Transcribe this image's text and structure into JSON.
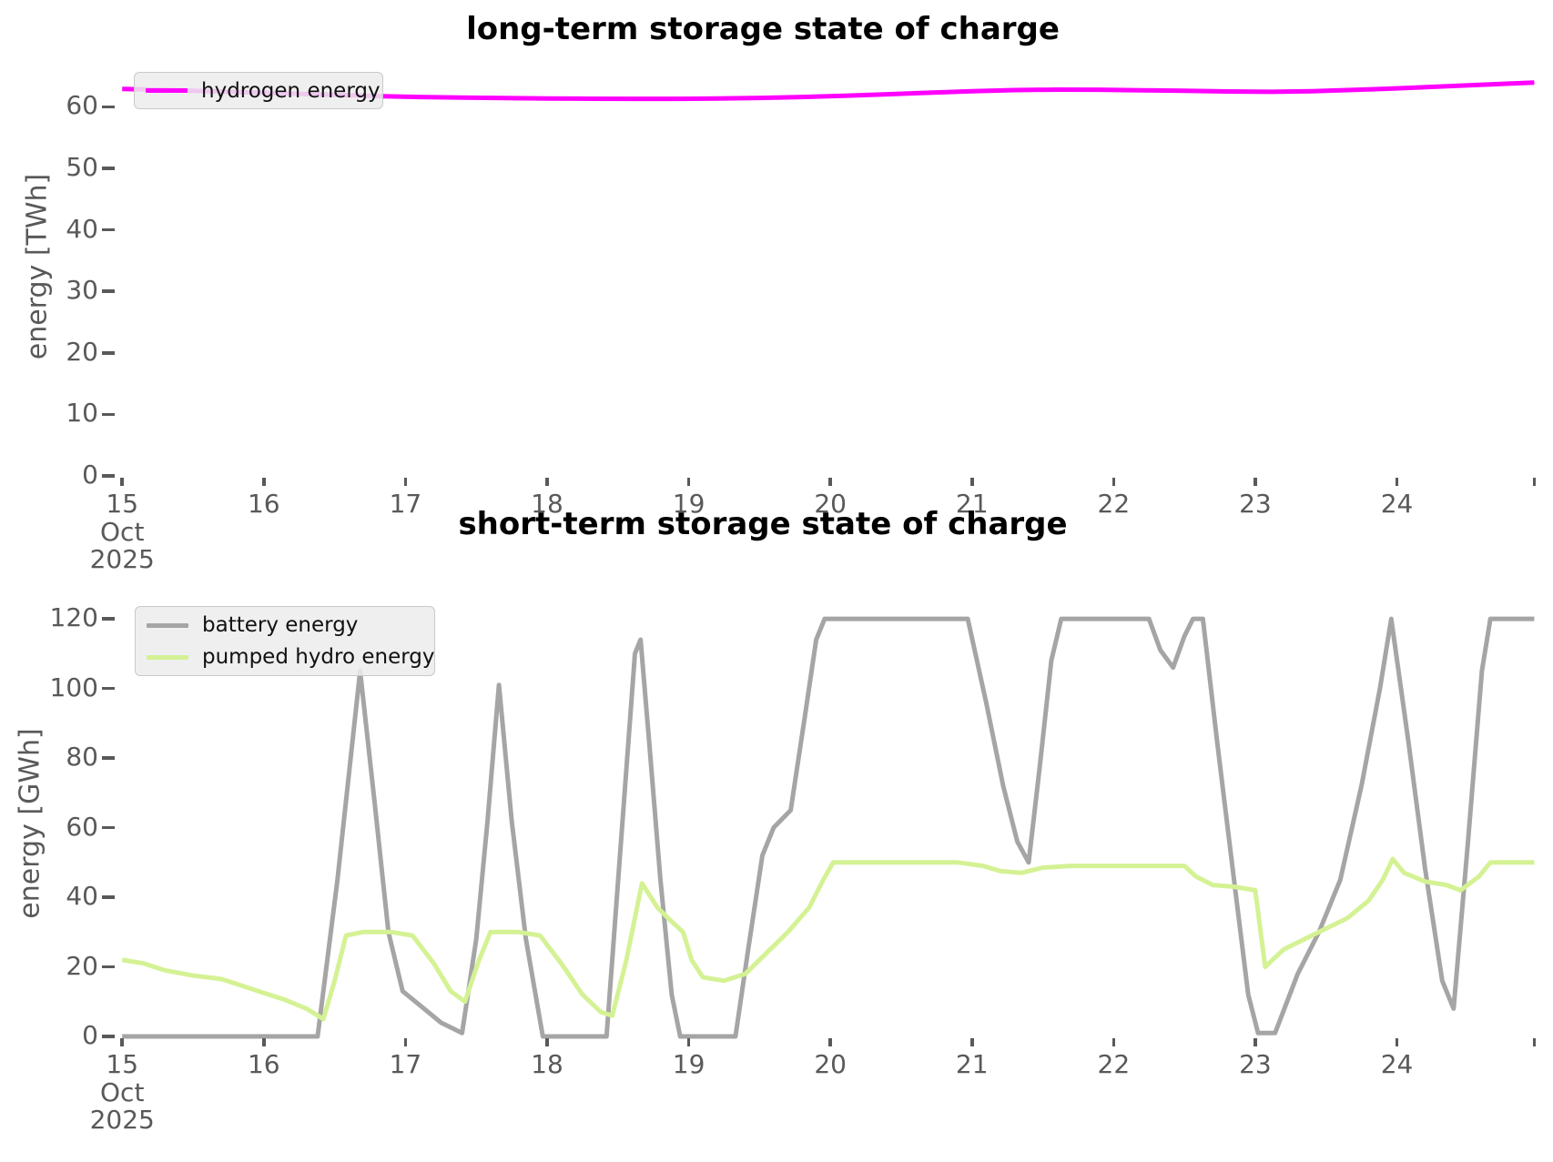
{
  "chart_data": [
    {
      "type": "line",
      "title": "long-term storage state of charge",
      "ylabel": "energy [TWh]",
      "xlabel": "",
      "x_unit": "day of October 2025",
      "x_start_date": "15 Oct 2025",
      "xlim": [
        14.96,
        24.98
      ],
      "ylim": [
        0,
        68.05
      ],
      "yticks": [
        0,
        10,
        20,
        30,
        40,
        50,
        60
      ],
      "xticks": [
        {
          "v": 15,
          "label": "15",
          "sub": [
            "Oct",
            "2025"
          ]
        },
        {
          "v": 16,
          "label": "16"
        },
        {
          "v": 17,
          "label": "17"
        },
        {
          "v": 18,
          "label": "18"
        },
        {
          "v": 19,
          "label": "19"
        },
        {
          "v": 20,
          "label": "20"
        },
        {
          "v": 21,
          "label": "21"
        },
        {
          "v": 22,
          "label": "22"
        },
        {
          "v": 23,
          "label": "23"
        },
        {
          "v": 24,
          "label": "24"
        },
        {
          "v": 24.97,
          "label": ""
        }
      ],
      "grid": false,
      "legend_position": "upper left",
      "series": [
        {
          "name": "hydrogen energy",
          "color": "#ff00ff",
          "points": [
            [
              15.0,
              62.9
            ],
            [
              15.3,
              62.75
            ],
            [
              15.6,
              62.55
            ],
            [
              15.9,
              62.35
            ],
            [
              16.2,
              62.15
            ],
            [
              16.5,
              61.95
            ],
            [
              16.8,
              61.75
            ],
            [
              17.1,
              61.6
            ],
            [
              17.4,
              61.5
            ],
            [
              17.7,
              61.42
            ],
            [
              18.0,
              61.36
            ],
            [
              18.3,
              61.32
            ],
            [
              18.6,
              61.3
            ],
            [
              18.9,
              61.3
            ],
            [
              19.2,
              61.35
            ],
            [
              19.5,
              61.45
            ],
            [
              19.8,
              61.6
            ],
            [
              20.1,
              61.8
            ],
            [
              20.4,
              62.05
            ],
            [
              20.7,
              62.3
            ],
            [
              21.0,
              62.55
            ],
            [
              21.3,
              62.72
            ],
            [
              21.6,
              62.8
            ],
            [
              21.9,
              62.78
            ],
            [
              22.2,
              62.7
            ],
            [
              22.5,
              62.6
            ],
            [
              22.8,
              62.5
            ],
            [
              23.1,
              62.45
            ],
            [
              23.4,
              62.55
            ],
            [
              23.7,
              62.75
            ],
            [
              24.0,
              63.0
            ],
            [
              24.3,
              63.3
            ],
            [
              24.6,
              63.6
            ],
            [
              24.97,
              63.95
            ]
          ]
        }
      ]
    },
    {
      "type": "line",
      "title": "short-term storage state of charge",
      "ylabel": "energy [GWh]",
      "xlabel": "",
      "x_unit": "day of October 2025",
      "x_start_date": "15 Oct 2025",
      "xlim": [
        14.96,
        24.98
      ],
      "ylim": [
        0,
        124.2
      ],
      "yticks": [
        0,
        20,
        40,
        60,
        80,
        100,
        120
      ],
      "xticks": [
        {
          "v": 15,
          "label": "15",
          "sub": [
            "Oct",
            "2025"
          ]
        },
        {
          "v": 16,
          "label": "16"
        },
        {
          "v": 17,
          "label": "17"
        },
        {
          "v": 18,
          "label": "18"
        },
        {
          "v": 19,
          "label": "19"
        },
        {
          "v": 20,
          "label": "20"
        },
        {
          "v": 21,
          "label": "21"
        },
        {
          "v": 22,
          "label": "22"
        },
        {
          "v": 23,
          "label": "23"
        },
        {
          "v": 24,
          "label": "24"
        },
        {
          "v": 24.97,
          "label": ""
        }
      ],
      "grid": false,
      "legend_position": "upper left",
      "series": [
        {
          "name": "battery energy",
          "color": "#a5a5a5",
          "points": [
            [
              15.0,
              0
            ],
            [
              15.5,
              0
            ],
            [
              16.0,
              0
            ],
            [
              16.38,
              0
            ],
            [
              16.52,
              45
            ],
            [
              16.68,
              105
            ],
            [
              16.78,
              68
            ],
            [
              16.88,
              30
            ],
            [
              16.98,
              13
            ],
            [
              17.1,
              9
            ],
            [
              17.25,
              4
            ],
            [
              17.4,
              1
            ],
            [
              17.5,
              28
            ],
            [
              17.58,
              62
            ],
            [
              17.66,
              101
            ],
            [
              17.75,
              62
            ],
            [
              17.85,
              28
            ],
            [
              17.97,
              0
            ],
            [
              18.2,
              0
            ],
            [
              18.42,
              0
            ],
            [
              18.52,
              55
            ],
            [
              18.62,
              110
            ],
            [
              18.66,
              114
            ],
            [
              18.72,
              85
            ],
            [
              18.8,
              45
            ],
            [
              18.88,
              12
            ],
            [
              18.94,
              0
            ],
            [
              19.1,
              0
            ],
            [
              19.33,
              0
            ],
            [
              19.42,
              25
            ],
            [
              19.52,
              52
            ],
            [
              19.6,
              60
            ],
            [
              19.72,
              65
            ],
            [
              19.82,
              92
            ],
            [
              19.9,
              114
            ],
            [
              19.96,
              120
            ],
            [
              20.3,
              120
            ],
            [
              20.6,
              120
            ],
            [
              20.97,
              120
            ],
            [
              21.1,
              96
            ],
            [
              21.22,
              72
            ],
            [
              21.32,
              56
            ],
            [
              21.4,
              50
            ],
            [
              21.48,
              78
            ],
            [
              21.56,
              108
            ],
            [
              21.63,
              120
            ],
            [
              22.0,
              120
            ],
            [
              22.25,
              120
            ],
            [
              22.33,
              111
            ],
            [
              22.42,
              106
            ],
            [
              22.5,
              115
            ],
            [
              22.56,
              120
            ],
            [
              22.63,
              120
            ],
            [
              22.73,
              85
            ],
            [
              22.85,
              45
            ],
            [
              22.95,
              12
            ],
            [
              23.02,
              1
            ],
            [
              23.14,
              1
            ],
            [
              23.3,
              18
            ],
            [
              23.45,
              30
            ],
            [
              23.6,
              45
            ],
            [
              23.75,
              72
            ],
            [
              23.88,
              100
            ],
            [
              23.96,
              120
            ],
            [
              24.08,
              85
            ],
            [
              24.2,
              48
            ],
            [
              24.32,
              16
            ],
            [
              24.4,
              8
            ],
            [
              24.5,
              55
            ],
            [
              24.6,
              105
            ],
            [
              24.66,
              120
            ],
            [
              24.8,
              120
            ],
            [
              24.97,
              120
            ]
          ]
        },
        {
          "name": "pumped hydro energy",
          "color": "#d4f294",
          "points": [
            [
              15.0,
              22
            ],
            [
              15.15,
              21
            ],
            [
              15.3,
              19
            ],
            [
              15.5,
              17.5
            ],
            [
              15.7,
              16.5
            ],
            [
              15.85,
              14.5
            ],
            [
              16.0,
              12.5
            ],
            [
              16.15,
              10.5
            ],
            [
              16.3,
              8
            ],
            [
              16.42,
              5
            ],
            [
              16.5,
              16
            ],
            [
              16.58,
              29
            ],
            [
              16.7,
              30
            ],
            [
              16.9,
              30
            ],
            [
              17.05,
              29
            ],
            [
              17.2,
              21
            ],
            [
              17.32,
              13
            ],
            [
              17.42,
              10
            ],
            [
              17.52,
              22
            ],
            [
              17.6,
              30
            ],
            [
              17.8,
              30
            ],
            [
              17.95,
              29
            ],
            [
              18.1,
              21
            ],
            [
              18.25,
              12
            ],
            [
              18.38,
              7
            ],
            [
              18.46,
              6
            ],
            [
              18.56,
              22
            ],
            [
              18.67,
              44
            ],
            [
              18.78,
              37
            ],
            [
              18.88,
              33
            ],
            [
              18.96,
              30
            ],
            [
              19.02,
              22
            ],
            [
              19.1,
              17
            ],
            [
              19.25,
              16
            ],
            [
              19.4,
              18
            ],
            [
              19.55,
              24
            ],
            [
              19.7,
              30
            ],
            [
              19.85,
              37
            ],
            [
              19.95,
              45
            ],
            [
              20.02,
              50
            ],
            [
              20.3,
              50
            ],
            [
              20.6,
              50
            ],
            [
              20.9,
              50
            ],
            [
              21.08,
              49
            ],
            [
              21.2,
              47.5
            ],
            [
              21.35,
              47
            ],
            [
              21.5,
              48.5
            ],
            [
              21.7,
              49
            ],
            [
              22.0,
              49
            ],
            [
              22.3,
              49
            ],
            [
              22.5,
              49
            ],
            [
              22.58,
              46
            ],
            [
              22.7,
              43.5
            ],
            [
              22.85,
              43
            ],
            [
              23.0,
              42
            ],
            [
              23.07,
              20
            ],
            [
              23.2,
              25
            ],
            [
              23.35,
              28
            ],
            [
              23.5,
              31
            ],
            [
              23.65,
              34
            ],
            [
              23.8,
              39
            ],
            [
              23.9,
              45
            ],
            [
              23.97,
              51
            ],
            [
              24.05,
              47
            ],
            [
              24.2,
              44.5
            ],
            [
              24.35,
              43.5
            ],
            [
              24.45,
              42
            ],
            [
              24.58,
              46
            ],
            [
              24.66,
              50
            ],
            [
              24.8,
              50
            ],
            [
              24.97,
              50
            ]
          ]
        }
      ]
    }
  ]
}
